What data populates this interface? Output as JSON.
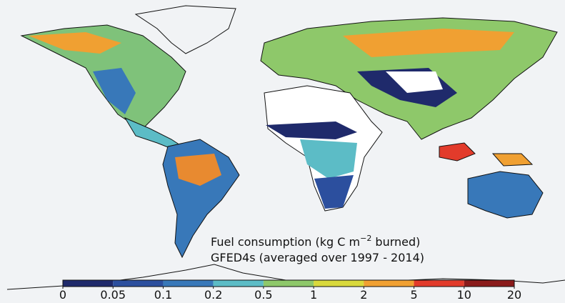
{
  "map": {
    "title_parts": [
      "Fuel consumption (kg C m",
      "−2",
      " burned)"
    ],
    "subtitle": "GFED4s (averaged over 1997 - 2014)",
    "colorbar": {
      "ticks": [
        0,
        0.05,
        0.1,
        0.2,
        0.5,
        1,
        2,
        5,
        10,
        20
      ],
      "colors": [
        "#1f2a6b",
        "#2c4f9e",
        "#3878b9",
        "#5cbcc6",
        "#8ec86a",
        "#d9d93c",
        "#f0a032",
        "#e23b2b",
        "#8a1b1b"
      ]
    }
  }
}
